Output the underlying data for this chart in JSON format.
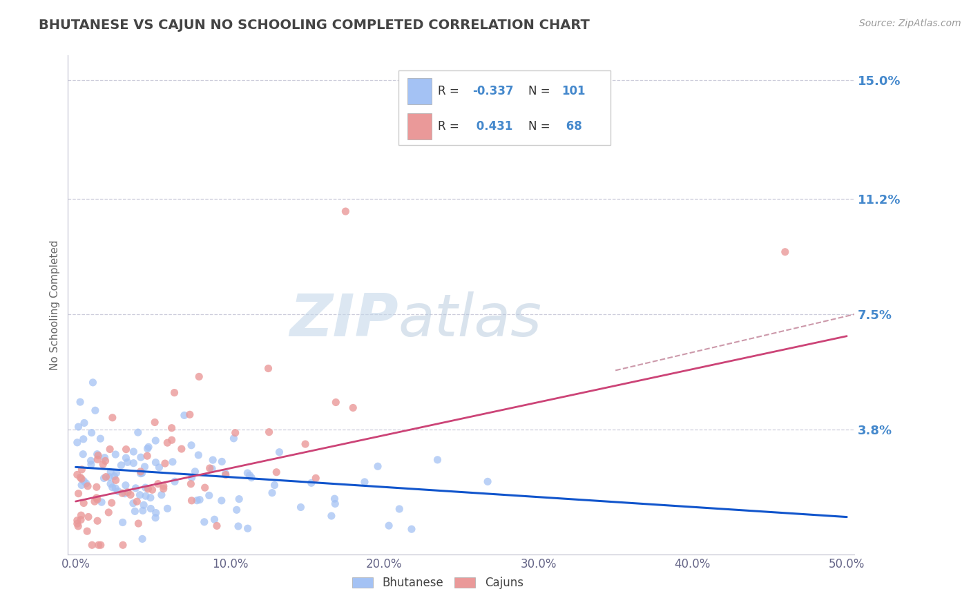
{
  "title": "BHUTANESE VS CAJUN NO SCHOOLING COMPLETED CORRELATION CHART",
  "source": "Source: ZipAtlas.com",
  "ylabel": "No Schooling Completed",
  "xlim": [
    -0.005,
    0.505
  ],
  "ylim": [
    -0.002,
    0.158
  ],
  "yticks": [
    0.038,
    0.075,
    0.112,
    0.15
  ],
  "ytick_labels": [
    "3.8%",
    "7.5%",
    "11.2%",
    "15.0%"
  ],
  "xticks": [
    0.0,
    0.1,
    0.2,
    0.3,
    0.4,
    0.5
  ],
  "xtick_labels": [
    "0.0%",
    "10.0%",
    "20.0%",
    "30.0%",
    "40.0%",
    "50.0%"
  ],
  "bhutanese_R": -0.337,
  "bhutanese_N": 101,
  "cajun_R": 0.431,
  "cajun_N": 68,
  "blue_color": "#a4c2f4",
  "pink_color": "#ea9999",
  "blue_line_color": "#1155cc",
  "pink_line_color": "#cc4477",
  "pink_dash_color": "#cc99aa",
  "legend_label_blue": "Bhutanese",
  "legend_label_pink": "Cajuns",
  "watermark_zip": "ZIP",
  "watermark_atlas": "atlas",
  "watermark_color_zip": "#c8d8ea",
  "watermark_color_atlas": "#b8cce0",
  "grid_color": "#c8c8d8",
  "background_color": "#ffffff",
  "title_color": "#444444",
  "ylabel_color": "#666666",
  "tick_color_x": "#666688",
  "tick_color_y": "#4488cc",
  "legend_text_color": "#444444",
  "legend_value_color": "#4488cc"
}
